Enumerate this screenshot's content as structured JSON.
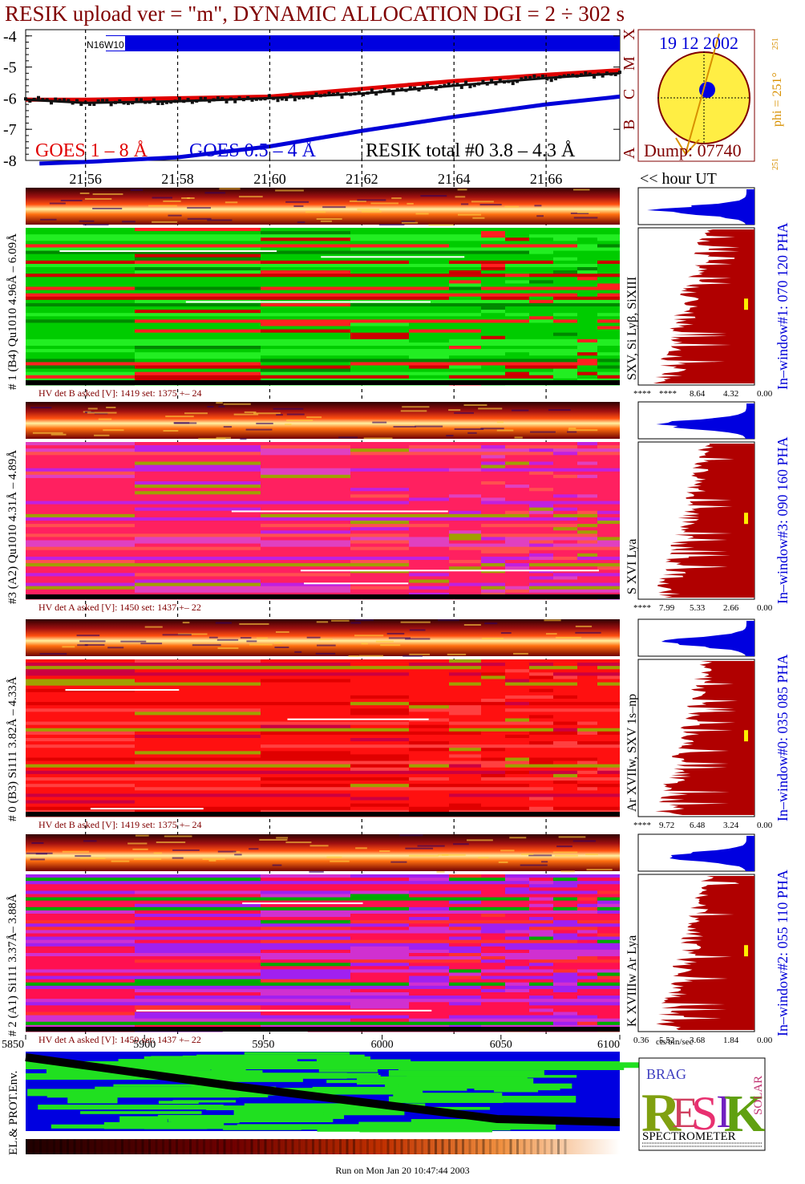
{
  "title": "RESIK upload ver = \"m\", DYNAMIC ALLOCATION  DGI =   2 ÷ 302 s",
  "colors": {
    "dark_red": "#800000",
    "goes_long": "#e00000",
    "goes_short": "#0000d8",
    "resik_total": "#111111",
    "spectrum_fill": "#b00000",
    "phi": "#d89000",
    "sun_disk": "#ffee44"
  },
  "sun_panel": {
    "date": "19 12 2002",
    "phi_label": "phi = 251°",
    "phi_small_top": "251",
    "phi_small_bottom": "251",
    "dump": "Dump: 07740",
    "flare_classes": [
      "A",
      "B",
      "C",
      "M",
      "X"
    ]
  },
  "goes_panel": {
    "bar_label": "N16W10",
    "legend_long": "GOES 1 – 8 Å",
    "legend_short": "GOES 0.5 – 4 Å",
    "legend_total": "RESIK total #0  3.8 – 4.3 Å",
    "hour_label": "<< hour UT"
  },
  "chart_data": {
    "type": "line",
    "title": "RESIK upload ver = \"m\", DYNAMIC ALLOCATION  DGI =   2 ÷ 302 s",
    "xlabel": "hour UT",
    "x_ticks": [
      "21.56",
      "21.58",
      "21.60",
      "21.62",
      "21.64",
      "21.66"
    ],
    "x_range": [
      21.547,
      21.676
    ],
    "y_ticks": [
      "-4",
      "-5",
      "-6",
      "-7",
      "-8"
    ],
    "y_range": [
      -8,
      -3.8
    ],
    "series": [
      {
        "name": "GOES 1 – 8 Å",
        "x": [
          21.547,
          21.56,
          21.58,
          21.6,
          21.62,
          21.64,
          21.66,
          21.676
        ],
        "y": [
          -6.05,
          -6.05,
          -6.0,
          -5.95,
          -5.7,
          -5.45,
          -5.25,
          -5.1
        ]
      },
      {
        "name": "GOES 0.5 – 4 Å",
        "x": [
          21.55,
          21.56,
          21.58,
          21.6,
          21.62,
          21.64,
          21.66,
          21.676
        ],
        "y": [
          -8.1,
          -8.05,
          -7.9,
          -7.55,
          -7.05,
          -6.6,
          -6.2,
          -5.95
        ]
      },
      {
        "name": "RESIK total #0  3.8 – 4.3 Å",
        "x": [
          21.547,
          21.56,
          21.58,
          21.6,
          21.62,
          21.64,
          21.66,
          21.676
        ],
        "y": [
          -6.05,
          -6.15,
          -6.1,
          -6.0,
          -5.85,
          -5.6,
          -5.35,
          -5.2
        ]
      }
    ],
    "time_axis": {
      "ticks": [
        "5850",
        "5900",
        "5950",
        "6000",
        "6050",
        "6100"
      ],
      "range": [
        5850,
        6100
      ]
    },
    "spectra_panels": [
      {
        "label": "# 1 (B4) Qu1010 4.96Å – 6.09Å",
        "lines": "SXV, Si Lyβ, SiXIII",
        "window": "In–window#1:  070 120 PHA",
        "hv": "HV det B asked [V]:  1419 set:  1375  +–   24",
        "hist_axis": [
          "****",
          "****",
          "8.64",
          "4.32",
          "0.00"
        ],
        "palette": "green"
      },
      {
        "label": "#3 (A2) Qu1010  4.31Å – 4.89Å",
        "lines": "S XVI Lya",
        "window": "In–window#3:  090 160 PHA",
        "hv": "HV det A asked [V]:  1450 set:  1437  +–   22",
        "hist_axis": [
          "****",
          "7.99",
          "5.33",
          "2.66",
          "0.00"
        ],
        "palette": "magenta"
      },
      {
        "label": "# 0 (B3) Si111  3.82Å – 4.33Å",
        "lines": "Ar XVIIw,  SXV 1s–np",
        "window": "In–window#0:  035 085 PHA",
        "hv": "HV det B asked [V]:  1419 set:  1375  +–   24",
        "hist_axis": [
          "****",
          "9.72",
          "6.48",
          "3.24",
          "0.00"
        ],
        "palette": "red"
      },
      {
        "label": "# 2 (A1) Si111  3.37Å– 3.88Å",
        "lines": "K XVIIIw  Ar Lya",
        "window": "In–window#2:  055 110 PHA",
        "hv": "HV det A asked [V]:  1450 set:  1437  +–   22",
        "hist_axis": [
          "0.36",
          "5.52",
          "3.68",
          "1.84",
          "0.00"
        ],
        "palette": "purple"
      }
    ],
    "hist_unit": "cts/bin/sec"
  },
  "env_panel": {
    "label": "EL.& PROT.Env."
  },
  "logo": {
    "letters": "RESIK",
    "small_top": "BRAG",
    "small_right": "SOLAR",
    "bottom": "SPECTROMETER"
  },
  "footer": "Run on Mon Jan 20 10:47:44 2003"
}
